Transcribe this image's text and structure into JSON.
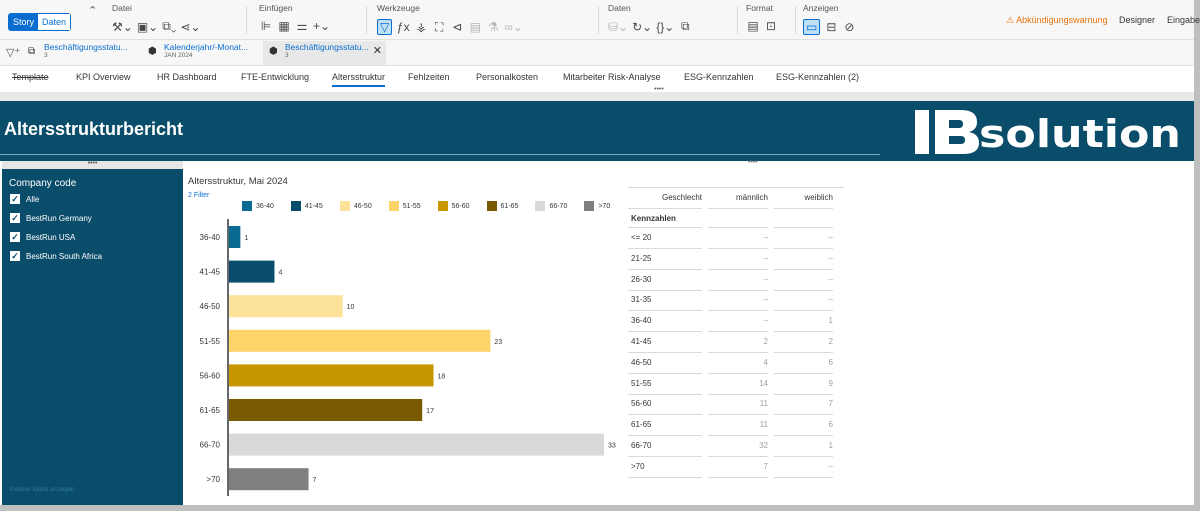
{
  "toolbar": {
    "mode_story": "Story",
    "mode_daten": "Daten",
    "groups": {
      "datei": "Datei",
      "einfuegen": "Einfügen",
      "werkzeuge": "Werkzeuge",
      "daten": "Daten",
      "format": "Format",
      "anzeigen": "Anzeigen"
    },
    "warning": "Abkündigungswarnung",
    "designer": "Designer",
    "eingabe": "Eingabe"
  },
  "filters": [
    {
      "title": "Beschäftigungsstatu...",
      "sub": "3"
    },
    {
      "title": "Kalenderjahr/-Monat...",
      "sub": "JAN 2024"
    },
    {
      "title": "Beschäftigungsstatu...",
      "sub": "3"
    }
  ],
  "tabs": [
    "Template",
    "KPI Overview",
    "HR Dashboard",
    "FTE-Entwicklung",
    "Altersstruktur",
    "Fehlzeiten",
    "Personalkosten",
    "Mitarbeiter Risk-Analyse",
    "ESG-Kennzahlen",
    "ESG-Kennzahlen (2)"
  ],
  "active_tab": "Altersstruktur",
  "banner": {
    "title": "Altersstrukturbericht",
    "logo_text": "IBsolution"
  },
  "left_panel": {
    "title": "Company code",
    "items": [
      "Alle",
      "BestRun Germany",
      "BestRun USA",
      "BestRun South Africa"
    ],
    "footer": "Inaktive Werte anzeigen"
  },
  "chart": {
    "title": "Altersstruktur, Mai 2024",
    "filter_label": "2 Filter"
  },
  "chart_data": {
    "type": "bar",
    "orientation": "horizontal",
    "title": "Altersstruktur, Mai 2024",
    "categories": [
      "36-40",
      "41-45",
      "46-50",
      "51-55",
      "56-60",
      "61-65",
      "66-70",
      ">70"
    ],
    "values": [
      1,
      4,
      10,
      23,
      18,
      17,
      33,
      7
    ],
    "colors": [
      "#0a6a92",
      "#0a4d6b",
      "#fde29b",
      "#fdd46a",
      "#c89600",
      "#7a5a00",
      "#d9d9d9",
      "#7f7f7f"
    ],
    "legend": [
      "36-40",
      "41-45",
      "46-50",
      "51-55",
      "56-60",
      "61-65",
      "66-70",
      ">70"
    ],
    "legend_position": "top",
    "grid": false,
    "xlim": [
      0,
      33
    ]
  },
  "table": {
    "header_col1": "Geschlecht",
    "header_m": "männlich",
    "header_w": "weiblich",
    "section": "Kennzahlen",
    "rows": [
      {
        "label": "<= 20",
        "m": "–",
        "w": "–"
      },
      {
        "label": "21-25",
        "m": "–",
        "w": "–"
      },
      {
        "label": "26-30",
        "m": "–",
        "w": "–"
      },
      {
        "label": "31-35",
        "m": "–",
        "w": "–"
      },
      {
        "label": "36-40",
        "m": "–",
        "w": "1"
      },
      {
        "label": "41-45",
        "m": "2",
        "w": "2"
      },
      {
        "label": "46-50",
        "m": "4",
        "w": "6"
      },
      {
        "label": "51-55",
        "m": "14",
        "w": "9"
      },
      {
        "label": "56-60",
        "m": "11",
        "w": "7"
      },
      {
        "label": "61-65",
        "m": "11",
        "w": "6"
      },
      {
        "label": "66-70",
        "m": "32",
        "w": "1"
      },
      {
        "label": ">70",
        "m": "7",
        "w": "–"
      }
    ]
  },
  "colors": {
    "brand": "#0a4d6b",
    "accent": "#0a6ed1",
    "warning": "#e9730c"
  }
}
